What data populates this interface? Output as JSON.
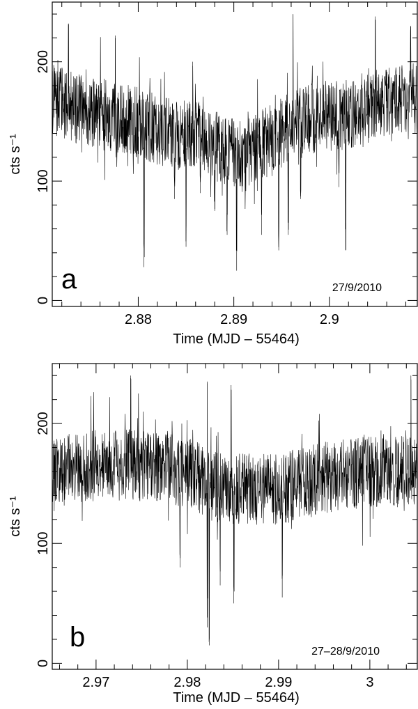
{
  "chart_data": [
    {
      "type": "line",
      "panel_label": "a",
      "date_label": "27/9/2010",
      "xlabel": "Time (MJD – 55464)",
      "ylabel": "cts s⁻¹",
      "xlim": [
        2.871,
        2.9092
      ],
      "ylim": [
        -5,
        250
      ],
      "xticks": [
        2.88,
        2.89,
        2.9
      ],
      "xtick_labels": [
        "2.88",
        "2.89",
        "2.9"
      ],
      "yticks": [
        0,
        100,
        200
      ],
      "ytick_labels": [
        "0",
        "100",
        "200"
      ],
      "baseline": [
        [
          2.871,
          168
        ],
        [
          2.874,
          160
        ],
        [
          2.877,
          155
        ],
        [
          2.88,
          150
        ],
        [
          2.883,
          140
        ],
        [
          2.886,
          138
        ],
        [
          2.889,
          125
        ],
        [
          2.891,
          120
        ],
        [
          2.893,
          130
        ],
        [
          2.896,
          145
        ],
        [
          2.899,
          155
        ],
        [
          2.902,
          155
        ],
        [
          2.905,
          165
        ],
        [
          2.9092,
          170
        ]
      ],
      "dips": [
        [
          2.8806,
          28
        ],
        [
          2.8838,
          85
        ],
        [
          2.885,
          45
        ],
        [
          2.8865,
          90
        ],
        [
          2.888,
          75
        ],
        [
          2.8893,
          55
        ],
        [
          2.8903,
          25
        ],
        [
          2.8929,
          55
        ],
        [
          2.8947,
          42
        ],
        [
          2.8957,
          55
        ],
        [
          2.897,
          85
        ],
        [
          2.901,
          95
        ],
        [
          2.9017,
          42
        ]
      ],
      "peaks": [
        [
          2.8727,
          232
        ],
        [
          2.8776,
          222
        ],
        [
          2.8857,
          200
        ],
        [
          2.8962,
          240
        ],
        [
          2.9048,
          238
        ],
        [
          2.9085,
          230
        ]
      ]
    },
    {
      "type": "line",
      "panel_label": "b",
      "date_label": "27–28/9/2010",
      "xlabel": "Time (MJD – 55464)",
      "ylabel": "cts s⁻¹",
      "xlim": [
        2.9652,
        3.0052
      ],
      "ylim": [
        -5,
        250
      ],
      "xticks": [
        2.97,
        2.98,
        2.99,
        3.0
      ],
      "xtick_labels": [
        "2.97",
        "2.98",
        "2.99",
        "3"
      ],
      "yticks": [
        0,
        100,
        200
      ],
      "ytick_labels": [
        "0",
        "100",
        "200"
      ],
      "baseline": [
        [
          2.9652,
          160
        ],
        [
          2.97,
          165
        ],
        [
          2.975,
          165
        ],
        [
          2.98,
          160
        ],
        [
          2.982,
          150
        ],
        [
          2.985,
          145
        ],
        [
          2.99,
          145
        ],
        [
          2.995,
          155
        ],
        [
          3.0,
          160
        ],
        [
          3.0052,
          160
        ]
      ],
      "dips": [
        [
          2.9792,
          80
        ],
        [
          2.9822,
          30
        ],
        [
          2.9824,
          15
        ],
        [
          2.9836,
          65
        ],
        [
          2.9851,
          50
        ],
        [
          2.9904,
          55
        ]
      ],
      "peaks": [
        [
          2.9738,
          240
        ],
        [
          2.9822,
          235
        ],
        [
          2.9848,
          232
        ],
        [
          3.0045,
          240
        ]
      ]
    }
  ]
}
